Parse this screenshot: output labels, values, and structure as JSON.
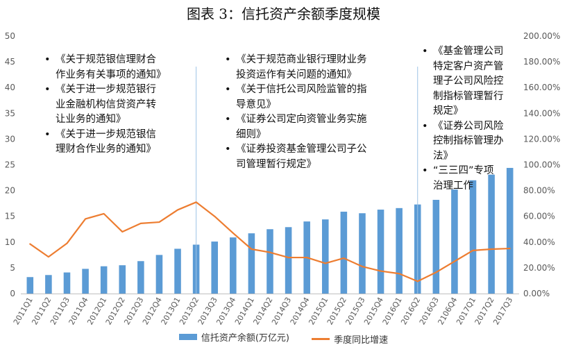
{
  "chart_data": {
    "type": "bar",
    "title": "图表 3：信托资产余额季度规模",
    "categories": [
      "2011Q1",
      "2011Q2",
      "2011Q3",
      "2011Q4",
      "2012Q1",
      "2012Q2",
      "2012Q3",
      "2012Q4",
      "2013Q1",
      "2013Q2",
      "2013Q3",
      "2013Q4",
      "2014Q1",
      "2014Q2",
      "2014Q3",
      "2014Q4",
      "2015Q1",
      "2015Q2",
      "2015Q3",
      "2015Q4",
      "2016Q1",
      "2016Q2",
      "2016Q3",
      "2106Q4",
      "2017Q1",
      "2017Q2",
      "2017Q3"
    ],
    "series": [
      {
        "name": "信托资产余额(万亿元)",
        "type": "bar",
        "axis": "left",
        "color": "#5b9bd5",
        "values": [
          3.2,
          3.6,
          4.1,
          4.8,
          5.3,
          5.5,
          6.3,
          7.5,
          8.7,
          9.5,
          10.1,
          10.9,
          11.7,
          12.5,
          12.9,
          14.0,
          14.4,
          15.9,
          15.6,
          16.3,
          16.6,
          17.3,
          18.2,
          20.2,
          22.0,
          23.1,
          24.4
        ]
      },
      {
        "name": "季度同比增速",
        "type": "line",
        "axis": "right",
        "color": "#ed7d31",
        "values": [
          38.5,
          28.5,
          39.0,
          58.0,
          62.0,
          48.0,
          54.5,
          55.5,
          65.0,
          71.0,
          60.0,
          47.0,
          34.5,
          32.0,
          28.0,
          28.0,
          23.5,
          27.5,
          21.0,
          17.5,
          15.5,
          9.5,
          16.5,
          25.0,
          33.5,
          34.5,
          35.0
        ]
      }
    ],
    "y_left": {
      "min": 0,
      "max": 50,
      "ticks": [
        "0",
        "5",
        "10",
        "15",
        "20",
        "25",
        "30",
        "35",
        "40",
        "45",
        "50"
      ]
    },
    "y_right": {
      "min": 0,
      "max": 200,
      "ticks": [
        "0.00%",
        "20.00%",
        "40.00%",
        "60.00%",
        "80.00%",
        "100.00%",
        "120.00%",
        "140.00%",
        "160.00%",
        "180.00%",
        "200.00%"
      ]
    },
    "grid": false,
    "legend": "bottom",
    "vertical_markers": [
      "2013Q2",
      "2016Q2"
    ],
    "annotations": [
      {
        "items": [
          [
            "《关于规范银信理财合",
            "作业务有关事项的通知》"
          ],
          [
            "《关于进一步规范银行",
            "业金融机构信贷资产转",
            "让业务的通知》"
          ],
          [
            "《关于进一步规范银信",
            "理财合作业务的通知》"
          ]
        ]
      },
      {
        "items": [
          [
            "《关于规范商业银行理财业务",
            "投资运作有关问题的通知》"
          ],
          [
            "《关于信托公司风险监管的指",
            "导意见》"
          ],
          [
            "《证券公司定向资管业务实施",
            "细则》"
          ],
          [
            "《证券投资基金管理公司子公",
            "司管理暂行规定》"
          ]
        ]
      },
      {
        "items": [
          [
            "《基金管理公司",
            "特定客户资产管",
            "理子公司风险控",
            "制指标管理暂行",
            "规定》"
          ],
          [
            "《证券公司风险",
            "控制指标管理办",
            "法》"
          ],
          [
            "“三三四”专项",
            "治理工作"
          ]
        ]
      }
    ]
  }
}
